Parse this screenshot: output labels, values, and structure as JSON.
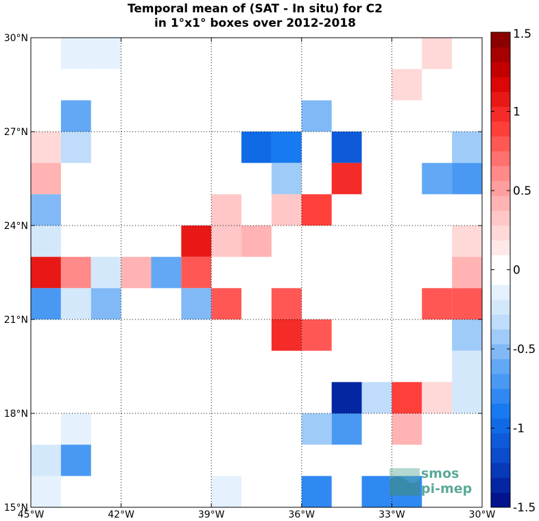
{
  "title_line1": "Temporal mean of (SAT - In situ) for C2",
  "title_line2": "in 1°x1° boxes over 2012-2018",
  "logo": {
    "line1": "smos",
    "line2": "pi-mep"
  },
  "chart_data": {
    "type": "heatmap",
    "title": "Temporal mean of (SAT - In situ) for C2 in 1°x1° boxes over 2012-2018",
    "xlabel": "",
    "ylabel": "",
    "xlim": [
      -45,
      -30
    ],
    "ylim": [
      15,
      30
    ],
    "xticks": [
      -45,
      -42,
      -39,
      -36,
      -33,
      -30
    ],
    "xtick_labels": [
      "45°W",
      "42°W",
      "39°W",
      "36°W",
      "33°W",
      "30°W"
    ],
    "yticks": [
      15,
      18,
      21,
      24,
      27,
      30
    ],
    "ytick_labels": [
      "15°N",
      "18°N",
      "21°N",
      "24°N",
      "27°N",
      "30°N"
    ],
    "grid": true,
    "grid_style": "dotted",
    "colorbar": {
      "range": [
        -1.5,
        1.5
      ],
      "levels": 32,
      "ticks": [
        1.5,
        1,
        0.5,
        0,
        -0.5,
        -1,
        -1.5
      ],
      "tick_labels": [
        "1.5",
        "1",
        "0.5",
        "0",
        "-0.5",
        "-1",
        "-1.5"
      ],
      "colormap": "blue-white-red"
    },
    "cells": [
      {
        "lon": -44,
        "lat": 29,
        "value": -0.15
      },
      {
        "lon": -43,
        "lat": 29,
        "value": -0.15
      },
      {
        "lon": -32,
        "lat": 29,
        "value": 0.2
      },
      {
        "lon": -33,
        "lat": 28,
        "value": 0.2
      },
      {
        "lon": -44,
        "lat": 27,
        "value": -0.6
      },
      {
        "lon": -36,
        "lat": 27,
        "value": -0.5
      },
      {
        "lon": -45,
        "lat": 26,
        "value": 0.2
      },
      {
        "lon": -44,
        "lat": 26,
        "value": -0.35
      },
      {
        "lon": -38,
        "lat": 26,
        "value": -0.95
      },
      {
        "lon": -37,
        "lat": 26,
        "value": -0.85
      },
      {
        "lon": -35,
        "lat": 26,
        "value": -1.05
      },
      {
        "lon": -31,
        "lat": 26,
        "value": -0.45
      },
      {
        "lon": -45,
        "lat": 25,
        "value": 0.45
      },
      {
        "lon": -37,
        "lat": 25,
        "value": -0.45
      },
      {
        "lon": -35,
        "lat": 25,
        "value": 1.0
      },
      {
        "lon": -32,
        "lat": 25,
        "value": -0.6
      },
      {
        "lon": -31,
        "lat": 25,
        "value": -0.75
      },
      {
        "lon": -45,
        "lat": 24,
        "value": -0.55
      },
      {
        "lon": -39,
        "lat": 24,
        "value": 0.3
      },
      {
        "lon": -37,
        "lat": 24,
        "value": 0.3
      },
      {
        "lon": -36,
        "lat": 24,
        "value": 0.9
      },
      {
        "lon": -45,
        "lat": 23,
        "value": -0.25
      },
      {
        "lon": -40,
        "lat": 23,
        "value": 1.05
      },
      {
        "lon": -39,
        "lat": 23,
        "value": 0.3
      },
      {
        "lon": -38,
        "lat": 23,
        "value": 0.45
      },
      {
        "lon": -31,
        "lat": 23,
        "value": 0.2
      },
      {
        "lon": -45,
        "lat": 22,
        "value": 1.1
      },
      {
        "lon": -44,
        "lat": 22,
        "value": 0.6
      },
      {
        "lon": -43,
        "lat": 22,
        "value": -0.25
      },
      {
        "lon": -42,
        "lat": 22,
        "value": 0.45
      },
      {
        "lon": -41,
        "lat": 22,
        "value": -0.6
      },
      {
        "lon": -40,
        "lat": 22,
        "value": 0.75
      },
      {
        "lon": -31,
        "lat": 22,
        "value": 0.45
      },
      {
        "lon": -45,
        "lat": 21,
        "value": -0.75
      },
      {
        "lon": -44,
        "lat": 21,
        "value": -0.25
      },
      {
        "lon": -43,
        "lat": 21,
        "value": -0.5
      },
      {
        "lon": -40,
        "lat": 21,
        "value": -0.5
      },
      {
        "lon": -39,
        "lat": 21,
        "value": 0.75
      },
      {
        "lon": -37,
        "lat": 21,
        "value": 0.75
      },
      {
        "lon": -32,
        "lat": 21,
        "value": 0.8
      },
      {
        "lon": -31,
        "lat": 21,
        "value": 0.8
      },
      {
        "lon": -37,
        "lat": 20,
        "value": 0.95
      },
      {
        "lon": -36,
        "lat": 20,
        "value": 0.75
      },
      {
        "lon": -31,
        "lat": 20,
        "value": -0.4
      },
      {
        "lon": -31,
        "lat": 19,
        "value": -0.25
      },
      {
        "lon": -35,
        "lat": 18,
        "value": -1.4
      },
      {
        "lon": -34,
        "lat": 18,
        "value": -0.35
      },
      {
        "lon": -33,
        "lat": 18,
        "value": 0.85
      },
      {
        "lon": -32,
        "lat": 18,
        "value": 0.2
      },
      {
        "lon": -31,
        "lat": 18,
        "value": -0.25
      },
      {
        "lon": -44,
        "lat": 17,
        "value": -0.15
      },
      {
        "lon": -36,
        "lat": 17,
        "value": -0.45
      },
      {
        "lon": -35,
        "lat": 17,
        "value": -0.75
      },
      {
        "lon": -33,
        "lat": 17,
        "value": 0.45
      },
      {
        "lon": -45,
        "lat": 16,
        "value": -0.25
      },
      {
        "lon": -44,
        "lat": 16,
        "value": -0.7
      },
      {
        "lon": -45,
        "lat": 15,
        "value": -0.15
      },
      {
        "lon": -39,
        "lat": 15,
        "value": -0.15
      },
      {
        "lon": -36,
        "lat": 15,
        "value": -0.8
      },
      {
        "lon": -34,
        "lat": 15,
        "value": -0.8
      },
      {
        "lon": -33,
        "lat": 15,
        "value": -0.8
      }
    ]
  }
}
